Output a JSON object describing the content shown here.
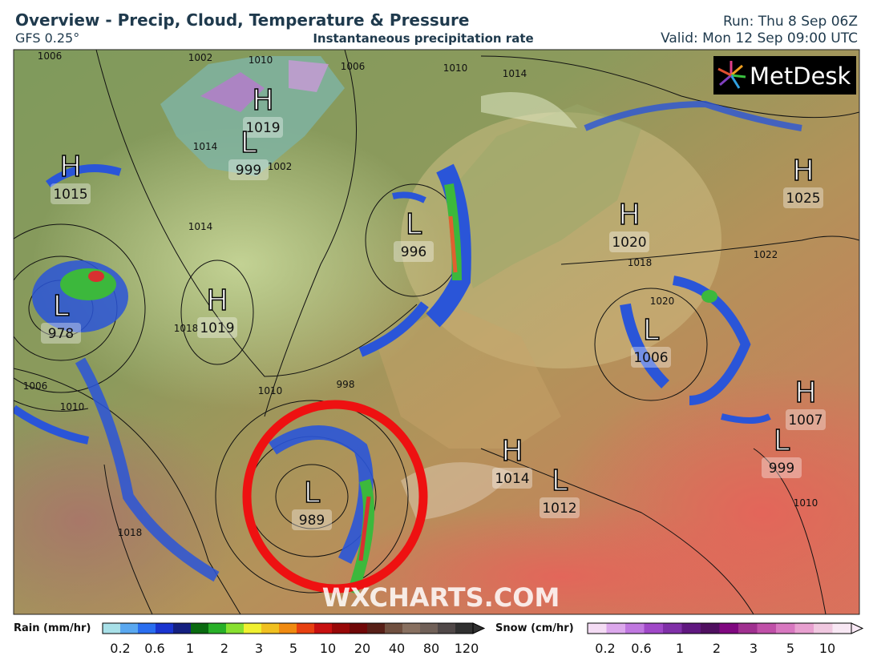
{
  "header": {
    "title": "Overview - Precip, Cloud, Temperature & Pressure",
    "model": "GFS 0.25°",
    "subtitle": "Instantaneous precipitation rate",
    "run": "Run: Thu 8 Sep 06Z",
    "valid": "Valid: Mon 12 Sep 09:00 UTC"
  },
  "logo": "MetDesk",
  "watermark": "WXCHARTS.COM",
  "centers": [
    {
      "kind": "H",
      "value": 1019
    },
    {
      "kind": "L",
      "value": 999
    },
    {
      "kind": "H",
      "value": 1015
    },
    {
      "kind": "L",
      "value": 996
    },
    {
      "kind": "L",
      "value": 978
    },
    {
      "kind": "H",
      "value": 1019
    },
    {
      "kind": "L",
      "value": 989
    },
    {
      "kind": "H",
      "value": 1020
    },
    {
      "kind": "H",
      "value": 1025
    },
    {
      "kind": "L",
      "value": 1006
    },
    {
      "kind": "H",
      "value": 1007
    },
    {
      "kind": "L",
      "value": 999
    },
    {
      "kind": "H",
      "value": 1014
    },
    {
      "kind": "L",
      "value": 1012
    }
  ],
  "isobar_labels": [
    1006,
    1002,
    1010,
    1006,
    1010,
    1014,
    1014,
    1002,
    1014,
    1018,
    1022,
    1020,
    1018,
    1010,
    998,
    1006,
    1010,
    1018,
    1010
  ],
  "legend": {
    "rain": {
      "title": "Rain (mm/hr)",
      "ticks": [
        "0.2",
        "0.6",
        "1",
        "2",
        "3",
        "5",
        "10",
        "20",
        "40",
        "80",
        "120"
      ]
    },
    "snow": {
      "title": "Snow (cm/hr)",
      "ticks": [
        "0.2",
        "0.6",
        "1",
        "2",
        "3",
        "5",
        "10"
      ]
    }
  }
}
